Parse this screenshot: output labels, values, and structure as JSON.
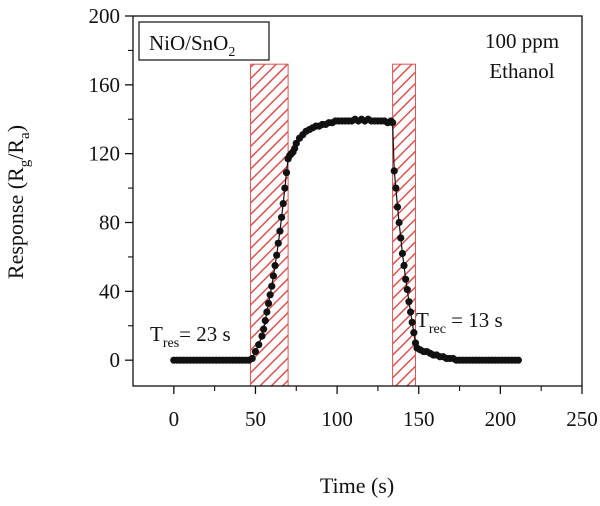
{
  "chart_data": {
    "type": "scatter",
    "xlabel": "Time (s)",
    "ylabel": "Response (Rg/Ra)",
    "ylabel_parts": {
      "main": "Response (R",
      "sub1": "g",
      "mid": "/R",
      "sub2": "a",
      "end": ")"
    },
    "xlim": [
      -25,
      250
    ],
    "ylim": [
      -15,
      200
    ],
    "xticks": [
      0,
      50,
      100,
      150,
      200,
      250
    ],
    "yticks": [
      0,
      40,
      80,
      120,
      160,
      200
    ],
    "grid": false,
    "annotations": {
      "sample": {
        "main": "NiO/SnO",
        "sub": "2"
      },
      "conc_line1": "100 ppm",
      "conc_line2": "Ethanol",
      "tres": {
        "main": "T",
        "sub": "res",
        "rest": "= 23 s"
      },
      "trec": {
        "main": "T",
        "sub": "rec",
        "rest": " = 13 s"
      }
    },
    "highlight_regions": [
      {
        "x": [
          47,
          70
        ],
        "y_top": 172
      },
      {
        "x": [
          134,
          148
        ],
        "y_top": 172
      }
    ],
    "series": [
      {
        "points": [
          [
            0,
            0
          ],
          [
            2,
            0
          ],
          [
            4,
            0
          ],
          [
            6,
            0
          ],
          [
            8,
            0
          ],
          [
            10,
            0
          ],
          [
            12,
            0
          ],
          [
            14,
            0
          ],
          [
            16,
            0
          ],
          [
            18,
            0
          ],
          [
            20,
            0
          ],
          [
            22,
            0
          ],
          [
            24,
            0
          ],
          [
            26,
            0
          ],
          [
            28,
            0
          ],
          [
            30,
            0
          ],
          [
            32,
            0
          ],
          [
            34,
            0
          ],
          [
            36,
            0
          ],
          [
            38,
            0
          ],
          [
            40,
            0
          ],
          [
            42,
            0
          ],
          [
            44,
            0
          ],
          [
            46,
            0
          ],
          [
            48,
            1
          ],
          [
            50,
            5
          ],
          [
            52,
            9
          ],
          [
            54,
            14
          ],
          [
            55,
            18
          ],
          [
            56,
            23
          ],
          [
            57,
            28
          ],
          [
            58,
            33
          ],
          [
            59,
            38
          ],
          [
            60,
            43
          ],
          [
            61,
            49
          ],
          [
            62,
            55
          ],
          [
            63,
            61
          ],
          [
            64,
            68
          ],
          [
            65,
            75
          ],
          [
            66,
            83
          ],
          [
            67,
            91
          ],
          [
            68,
            100
          ],
          [
            69,
            109
          ],
          [
            70,
            117
          ],
          [
            71,
            119
          ],
          [
            72,
            120
          ],
          [
            73,
            121
          ],
          [
            74,
            123
          ],
          [
            75,
            126
          ],
          [
            77,
            129
          ],
          [
            79,
            131
          ],
          [
            81,
            133
          ],
          [
            83,
            134
          ],
          [
            85,
            135
          ],
          [
            87,
            136
          ],
          [
            89,
            136
          ],
          [
            91,
            137
          ],
          [
            93,
            137
          ],
          [
            95,
            138
          ],
          [
            97,
            138
          ],
          [
            99,
            139
          ],
          [
            101,
            139
          ],
          [
            103,
            139
          ],
          [
            105,
            139
          ],
          [
            107,
            139
          ],
          [
            109,
            139
          ],
          [
            111,
            140
          ],
          [
            113,
            139
          ],
          [
            115,
            140
          ],
          [
            117,
            139
          ],
          [
            119,
            140
          ],
          [
            121,
            139
          ],
          [
            123,
            139
          ],
          [
            125,
            139
          ],
          [
            127,
            139
          ],
          [
            129,
            139
          ],
          [
            131,
            138
          ],
          [
            133,
            139
          ],
          [
            134,
            138
          ],
          [
            135,
            110
          ],
          [
            136,
            100
          ],
          [
            137,
            89
          ],
          [
            138,
            80
          ],
          [
            139,
            71
          ],
          [
            140,
            62
          ],
          [
            141,
            55
          ],
          [
            142,
            47
          ],
          [
            143,
            41
          ],
          [
            144,
            34
          ],
          [
            145,
            28
          ],
          [
            146,
            22
          ],
          [
            147,
            16
          ],
          [
            148,
            10
          ],
          [
            149,
            7
          ],
          [
            151,
            6
          ],
          [
            153,
            5
          ],
          [
            155,
            5
          ],
          [
            157,
            4
          ],
          [
            159,
            3
          ],
          [
            161,
            3
          ],
          [
            163,
            2
          ],
          [
            165,
            2
          ],
          [
            167,
            1
          ],
          [
            169,
            1
          ],
          [
            171,
            1
          ],
          [
            173,
            0
          ],
          [
            175,
            0
          ],
          [
            177,
            0
          ],
          [
            179,
            0
          ],
          [
            181,
            0
          ],
          [
            183,
            0
          ],
          [
            185,
            0
          ],
          [
            187,
            0
          ],
          [
            189,
            0
          ],
          [
            191,
            0
          ],
          [
            193,
            0
          ],
          [
            195,
            0
          ],
          [
            197,
            0
          ],
          [
            199,
            0
          ],
          [
            201,
            0
          ],
          [
            203,
            0
          ],
          [
            205,
            0
          ],
          [
            207,
            0
          ],
          [
            209,
            0
          ],
          [
            211,
            0
          ]
        ],
        "color": "#111111"
      }
    ],
    "region_color": "#d9534f"
  }
}
